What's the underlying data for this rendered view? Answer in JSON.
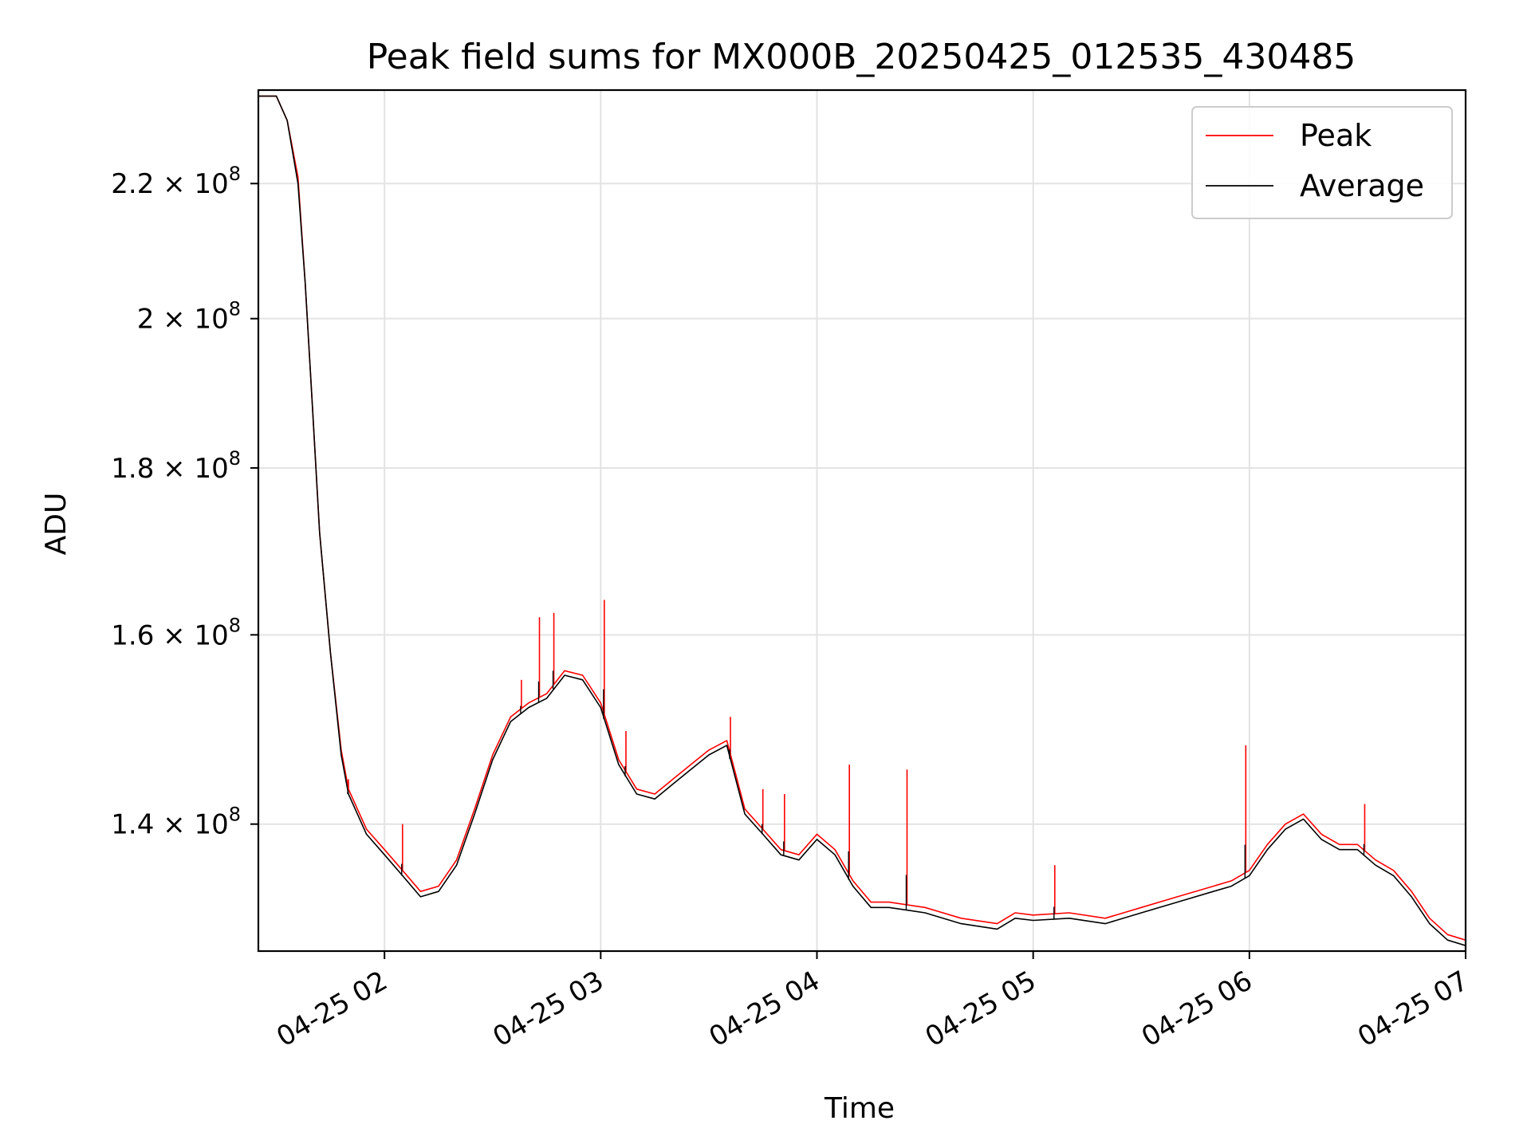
{
  "chart_data": {
    "type": "line",
    "title": "Peak field sums for MX000B_20250425_012535_430485",
    "xlabel": "Time",
    "ylabel": "ADU",
    "y_scale": "log",
    "grid": true,
    "legend_position": "top-right",
    "xlim": [
      "04-25 01:25",
      "04-25 07:00"
    ],
    "ylim": [
      128000000.0,
      235000000.0
    ],
    "x_ticks": [
      {
        "value": "04-25 02:00",
        "label": "04-25 02"
      },
      {
        "value": "04-25 03:00",
        "label": "04-25 03"
      },
      {
        "value": "04-25 04:00",
        "label": "04-25 04"
      },
      {
        "value": "04-25 05:00",
        "label": "04-25 05"
      },
      {
        "value": "04-25 06:00",
        "label": "04-25 06"
      },
      {
        "value": "04-25 07:00",
        "label": "04-25 07"
      }
    ],
    "y_ticks": [
      {
        "value": 140000000.0,
        "mantissa": "1.4",
        "base": "10",
        "exponent": "8"
      },
      {
        "value": 160000000.0,
        "mantissa": "1.6",
        "base": "10",
        "exponent": "8"
      },
      {
        "value": 180000000.0,
        "mantissa": "1.8",
        "base": "10",
        "exponent": "8"
      },
      {
        "value": 200000000.0,
        "mantissa": "2",
        "base": "10",
        "exponent": "8"
      },
      {
        "value": 220000000.0,
        "mantissa": "2.2",
        "base": "10",
        "exponent": "8"
      }
    ],
    "x": [
      "04-25 01:25",
      "04-25 01:30",
      "04-25 01:33",
      "04-25 01:36",
      "04-25 01:38",
      "04-25 01:40",
      "04-25 01:42",
      "04-25 01:45",
      "04-25 01:48",
      "04-25 01:50",
      "04-25 01:55",
      "04-25 02:00",
      "04-25 02:05",
      "04-25 02:10",
      "04-25 02:15",
      "04-25 02:20",
      "04-25 02:25",
      "04-25 02:30",
      "04-25 02:35",
      "04-25 02:40",
      "04-25 02:45",
      "04-25 02:50",
      "04-25 02:55",
      "04-25 03:00",
      "04-25 03:05",
      "04-25 03:10",
      "04-25 03:15",
      "04-25 03:20",
      "04-25 03:25",
      "04-25 03:30",
      "04-25 03:35",
      "04-25 03:40",
      "04-25 03:45",
      "04-25 03:50",
      "04-25 03:55",
      "04-25 04:00",
      "04-25 04:05",
      "04-25 04:10",
      "04-25 04:15",
      "04-25 04:20",
      "04-25 04:30",
      "04-25 04:40",
      "04-25 04:50",
      "04-25 04:55",
      "04-25 05:00",
      "04-25 05:10",
      "04-25 05:20",
      "04-25 05:30",
      "04-25 05:40",
      "04-25 05:50",
      "04-25 05:55",
      "04-25 06:00",
      "04-25 06:05",
      "04-25 06:10",
      "04-25 06:15",
      "04-25 06:20",
      "04-25 06:25",
      "04-25 06:30",
      "04-25 06:35",
      "04-25 06:40",
      "04-25 06:45",
      "04-25 06:50",
      "04-25 06:55",
      "04-25 07:00"
    ],
    "series": [
      {
        "name": "Average",
        "color": "#000000",
        "values": [
          234000000,
          234000000,
          230000000,
          220000000,
          205000000,
          188000000,
          172000000,
          158000000,
          147000000,
          143000000,
          139000000,
          137000000,
          135000000,
          133000000,
          133500000,
          136000000,
          141000000,
          146500000,
          150500000,
          152000000,
          153000000,
          155500000,
          155000000,
          152000000,
          146000000,
          143000000,
          142500000,
          144000000,
          145500000,
          147000000,
          148000000,
          141000000,
          139000000,
          137000000,
          136500000,
          138500000,
          137000000,
          134000000,
          132000000,
          132000000,
          131500000,
          130500000,
          130000000,
          131000000,
          130800000,
          131000000,
          130500000,
          131500000,
          132500000,
          133500000,
          134000000,
          135000000,
          137500000,
          139500000,
          140500000,
          138500000,
          137500000,
          137500000,
          136000000,
          135000000,
          133000000,
          130500000,
          129000000,
          128500000
        ]
      },
      {
        "name": "Peak",
        "color": "#ff0000",
        "values": [
          234000000,
          234000000,
          230000000,
          221000000,
          205000000,
          188000000,
          172000000,
          158000000,
          147500000,
          143500000,
          139500000,
          137500000,
          135500000,
          133500000,
          134000000,
          136500000,
          141500000,
          147000000,
          151000000,
          152500000,
          153500000,
          156000000,
          155500000,
          152500000,
          146500000,
          143500000,
          143000000,
          144500000,
          146000000,
          147500000,
          148500000,
          141500000,
          139500000,
          137500000,
          137000000,
          139000000,
          137500000,
          134500000,
          132500000,
          132500000,
          132000000,
          131000000,
          130500000,
          131500000,
          131300000,
          131500000,
          131000000,
          132000000,
          133000000,
          134000000,
          134500000,
          135500000,
          138000000,
          140000000,
          141000000,
          139000000,
          138000000,
          138000000,
          136500000,
          135500000,
          133500000,
          131000000,
          129500000,
          129000000
        ]
      }
    ],
    "peak_spikes": [
      {
        "x": "04-25 01:50",
        "y": 144500000
      },
      {
        "x": "04-25 02:05",
        "y": 140000000
      },
      {
        "x": "04-25 02:38",
        "y": 155000000
      },
      {
        "x": "04-25 02:43",
        "y": 162000000
      },
      {
        "x": "04-25 02:47",
        "y": 162500000
      },
      {
        "x": "04-25 03:01",
        "y": 164000000
      },
      {
        "x": "04-25 03:07",
        "y": 149500000
      },
      {
        "x": "04-25 03:36",
        "y": 151000000
      },
      {
        "x": "04-25 03:45",
        "y": 143500000
      },
      {
        "x": "04-25 03:51",
        "y": 143000000
      },
      {
        "x": "04-25 04:09",
        "y": 146000000
      },
      {
        "x": "04-25 04:25",
        "y": 145500000
      },
      {
        "x": "04-25 05:06",
        "y": 136000000
      },
      {
        "x": "04-25 05:59",
        "y": 148000000
      },
      {
        "x": "04-25 06:32",
        "y": 142000000
      }
    ]
  }
}
